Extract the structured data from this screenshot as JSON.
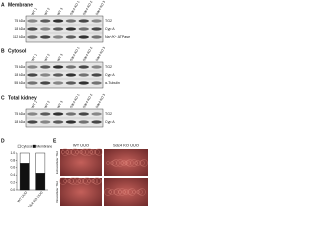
{
  "panels": {
    "a": {
      "label": "A",
      "title": "Membrane",
      "lanes": [
        "WT 1",
        "WT 2",
        "WT 3",
        "Sdc4 KO 1",
        "Sdc4 KO 2",
        "Sdc4 KO 3"
      ],
      "markers": [
        "75 kDa",
        "18 kDa",
        "112 kDa"
      ],
      "proteins": [
        "TG2",
        "Cyp A",
        "Na⁺/K⁺ ATPase"
      ]
    },
    "b": {
      "label": "B",
      "title": "Cytosol",
      "lanes": [
        "WT 1",
        "WT 2",
        "WT 3",
        "Sdc4 KO 1",
        "Sdc4 KO 2",
        "Sdc4 KO 3"
      ],
      "markers": [
        "75 kDa",
        "18 kDa",
        "55 kDa"
      ],
      "proteins": [
        "TG2",
        "Cyp A",
        "α-Tubulin"
      ]
    },
    "c": {
      "label": "C",
      "title": "Total kidney",
      "lanes": [
        "WT 1",
        "WT 2",
        "WT 3",
        "Sdc4 KO 1",
        "Sdc4 KO 2",
        "Sdc4 KO 3"
      ],
      "markers": [
        "75 kDa",
        "18 kDa"
      ],
      "proteins": [
        "TG2",
        "Cyp A"
      ]
    },
    "d": {
      "label": "D"
    },
    "e": {
      "label": "E",
      "columns": [
        "WT UUO",
        "Sdc4 KO UUO"
      ],
      "rows": [
        "Extracellular TG2",
        "Intracellular TG2"
      ]
    }
  },
  "chart_data": {
    "type": "bar",
    "stacked": true,
    "categories": [
      "WT UUO",
      "Sdc4 KO UUO"
    ],
    "series": [
      {
        "name": "Membrane",
        "color": "#111111",
        "values": [
          0.72,
          0.45
        ]
      },
      {
        "name": "Cytosol",
        "color": "#ffffff",
        "values": [
          0.28,
          0.55
        ]
      }
    ],
    "ylim": [
      0,
      1
    ],
    "yticks": [
      {
        "value": 0,
        "label": "0.0"
      },
      {
        "value": 0.2,
        "label": "0.2"
      },
      {
        "value": 0.4,
        "label": "0.4"
      },
      {
        "value": 0.6,
        "label": "0.6"
      },
      {
        "value": 0.8,
        "label": "0.8"
      },
      {
        "value": 1,
        "label": "1.0"
      }
    ],
    "annotation": "**"
  }
}
